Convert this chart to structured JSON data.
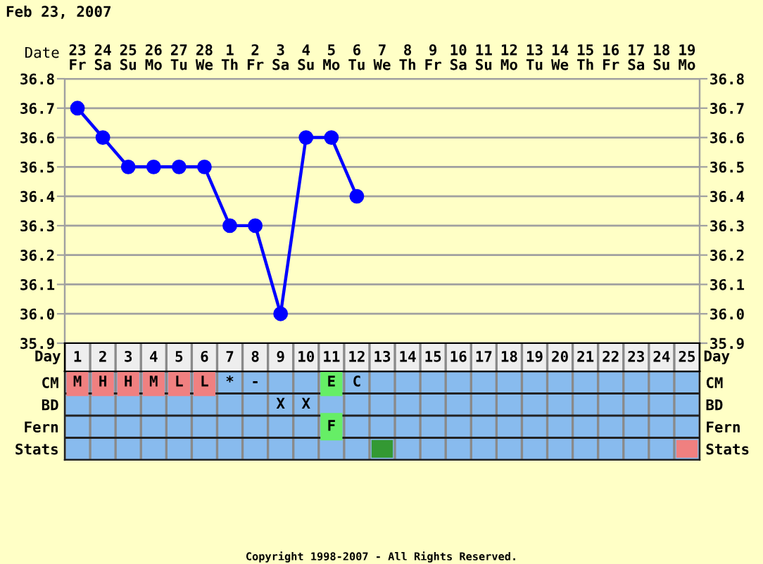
{
  "chart_data": [
    {
      "type": "line",
      "title": "Feb 23, 2007",
      "xlabel": "Date",
      "categories": [
        "23\nFr",
        "24\nSa",
        "25\nSu",
        "26\nMo",
        "27\nTu",
        "28\nWe",
        "1\nTh",
        "2\nFr",
        "3\nSa",
        "4\nSu",
        "5\nMo",
        "6\nTu",
        "7\nWe",
        "8\nTh",
        "9\nFr",
        "10\nSa",
        "11\nSu",
        "12\nMo",
        "13\nTu",
        "14\nWe",
        "15\nTh",
        "16\nFr",
        "17\nSa",
        "18\nSu",
        "19\nMo"
      ],
      "series": [
        {
          "color": "#0000ff",
          "values": [
            36.7,
            36.6,
            36.5,
            36.5,
            36.5,
            36.5,
            36.3,
            36.3,
            36.0,
            36.6,
            36.6,
            36.4,
            null,
            null,
            null,
            null,
            null,
            null,
            null,
            null,
            null,
            null,
            null,
            null,
            null
          ]
        }
      ],
      "ylim": [
        35.9,
        36.8
      ],
      "yticks": [
        35.9,
        {
          "value": 36,
          "label": "36.0"
        },
        36.1,
        36.2,
        36.3,
        36.4,
        36.5,
        36.6,
        36.7,
        36.8
      ],
      "y2lim": [
        35.9,
        36.8
      ],
      "y2ticks": [
        35.9,
        {
          "value": 36,
          "label": "36.0"
        },
        36.1,
        36.2,
        36.3,
        36.4,
        36.5,
        36.6,
        36.7,
        36.8
      ],
      "grid": true,
      "marker": "circle",
      "line_style": "solid",
      "annotations": [
        "Copyright 1998-2007 - All Rights Reserved."
      ]
    },
    {
      "type": "heatmap",
      "xlabel": "Day",
      "categories": [
        "1",
        "2",
        "3",
        "4",
        "5",
        "6",
        "7",
        "8",
        "9",
        "10",
        "11",
        "12",
        "13",
        "14",
        "15",
        "16",
        "17",
        "18",
        "19",
        "20",
        "21",
        "22",
        "23",
        "24",
        "25"
      ],
      "y_categories": [
        "CM",
        "BD",
        "Fern",
        "Stats"
      ],
      "y2_categories": [
        "CM",
        "BD",
        "Fern",
        "Stats"
      ],
      "cells": [
        [
          null,
          null,
          null,
          null,
          null,
          null,
          null,
          null,
          null,
          null,
          null,
          null,
          null,
          null,
          null,
          null,
          null,
          null,
          null,
          null,
          null,
          null,
          null,
          null,
          null
        ],
        [
          null,
          null,
          null,
          null,
          null,
          null,
          null,
          null,
          null,
          null,
          null,
          null,
          null,
          null,
          null,
          null,
          null,
          null,
          null,
          null,
          null,
          null,
          null,
          null,
          null
        ],
        [
          null,
          null,
          null,
          null,
          null,
          null,
          null,
          null,
          null,
          null,
          null,
          null,
          null,
          null,
          null,
          null,
          null,
          null,
          null,
          null,
          null,
          null,
          null,
          null,
          null
        ],
        [
          null,
          null,
          null,
          null,
          null,
          null,
          null,
          null,
          null,
          null,
          null,
          null,
          null,
          null,
          null,
          null,
          null,
          null,
          null,
          null,
          null,
          null,
          null,
          null,
          null
        ]
      ],
      "colors": [
        [
          "#f08080",
          "#f08080",
          "#f08080",
          "#f08080",
          "#f08080",
          "#f08080",
          null,
          null,
          null,
          null,
          "#66ee66",
          null,
          null,
          null,
          null,
          null,
          null,
          null,
          null,
          null,
          null,
          null,
          null,
          null,
          null
        ],
        [
          null,
          null,
          null,
          null,
          null,
          null,
          null,
          null,
          null,
          null,
          null,
          null,
          null,
          null,
          null,
          null,
          null,
          null,
          null,
          null,
          null,
          null,
          null,
          null,
          null
        ],
        [
          null,
          null,
          null,
          null,
          null,
          null,
          null,
          null,
          null,
          null,
          "#66ee66",
          null,
          null,
          null,
          null,
          null,
          null,
          null,
          null,
          null,
          null,
          null,
          null,
          null,
          null
        ],
        [
          null,
          null,
          null,
          null,
          null,
          null,
          null,
          null,
          null,
          null,
          null,
          null,
          "#339933",
          null,
          null,
          null,
          null,
          null,
          null,
          null,
          null,
          null,
          null,
          null,
          "#f08080"
        ]
      ],
      "cell_labels": [
        [
          "M",
          "H",
          "H",
          "M",
          "L",
          "L",
          "*",
          "-",
          null,
          null,
          "E",
          "C",
          null,
          null,
          null,
          null,
          null,
          null,
          null,
          null,
          null,
          null,
          null,
          null,
          null
        ],
        [
          null,
          null,
          null,
          null,
          null,
          null,
          null,
          null,
          "X",
          "X",
          null,
          null,
          null,
          null,
          null,
          null,
          null,
          null,
          null,
          null,
          null,
          null,
          null,
          null,
          null
        ],
        [
          null,
          null,
          null,
          null,
          null,
          null,
          null,
          null,
          null,
          null,
          "F",
          null,
          null,
          null,
          null,
          null,
          null,
          null,
          null,
          null,
          null,
          null,
          null,
          null,
          null
        ],
        [
          null,
          null,
          null,
          null,
          null,
          null,
          null,
          null,
          null,
          null,
          null,
          null,
          null,
          null,
          null,
          null,
          null,
          null,
          null,
          null,
          null,
          null,
          null,
          null,
          null
        ]
      ]
    }
  ]
}
